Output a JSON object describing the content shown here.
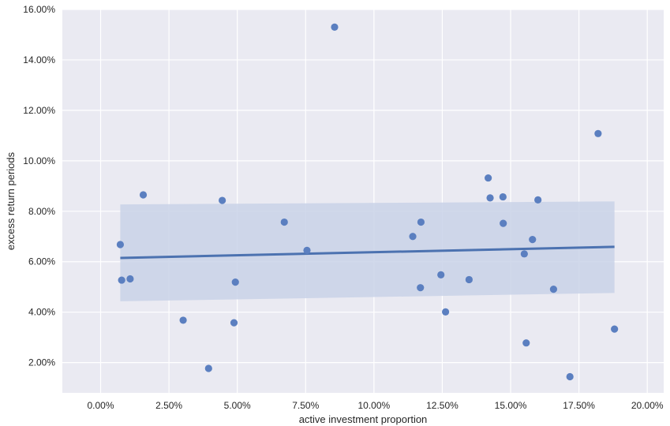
{
  "chart_data": {
    "type": "scatter",
    "title": "",
    "xlabel": "active investment proportion",
    "ylabel": "excess return periods",
    "xlim": [
      -0.014,
      0.206
    ],
    "ylim": [
      0.008,
      0.16
    ],
    "x_ticks": [
      {
        "value": 0.0,
        "label": "0.00%"
      },
      {
        "value": 0.025,
        "label": "2.50%"
      },
      {
        "value": 0.05,
        "label": "5.00%"
      },
      {
        "value": 0.075,
        "label": "7.50%"
      },
      {
        "value": 0.1,
        "label": "10.00%"
      },
      {
        "value": 0.125,
        "label": "12.50%"
      },
      {
        "value": 0.15,
        "label": "15.00%"
      },
      {
        "value": 0.175,
        "label": "17.50%"
      },
      {
        "value": 0.2,
        "label": "20.00%"
      }
    ],
    "y_ticks": [
      {
        "value": 0.02,
        "label": "2.00%"
      },
      {
        "value": 0.04,
        "label": "4.00%"
      },
      {
        "value": 0.06,
        "label": "6.00%"
      },
      {
        "value": 0.08,
        "label": "8.00%"
      },
      {
        "value": 0.1,
        "label": "10.00%"
      },
      {
        "value": 0.12,
        "label": "12.00%"
      },
      {
        "value": 0.14,
        "label": "14.00%"
      },
      {
        "value": 0.16,
        "label": "16.00%"
      }
    ],
    "grid": true,
    "points": [
      {
        "x": 0.0072,
        "y": 0.0668
      },
      {
        "x": 0.0077,
        "y": 0.0527
      },
      {
        "x": 0.0108,
        "y": 0.0532
      },
      {
        "x": 0.0156,
        "y": 0.0865
      },
      {
        "x": 0.0302,
        "y": 0.0368
      },
      {
        "x": 0.0395,
        "y": 0.0177
      },
      {
        "x": 0.0445,
        "y": 0.0843
      },
      {
        "x": 0.0488,
        "y": 0.0358
      },
      {
        "x": 0.0493,
        "y": 0.0519
      },
      {
        "x": 0.0672,
        "y": 0.0757
      },
      {
        "x": 0.0755,
        "y": 0.0645
      },
      {
        "x": 0.0856,
        "y": 0.153
      },
      {
        "x": 0.1142,
        "y": 0.07
      },
      {
        "x": 0.117,
        "y": 0.0497
      },
      {
        "x": 0.1172,
        "y": 0.0757
      },
      {
        "x": 0.1245,
        "y": 0.0548
      },
      {
        "x": 0.1262,
        "y": 0.0401
      },
      {
        "x": 0.1348,
        "y": 0.0529
      },
      {
        "x": 0.1418,
        "y": 0.0932
      },
      {
        "x": 0.1425,
        "y": 0.0853
      },
      {
        "x": 0.1472,
        "y": 0.0857
      },
      {
        "x": 0.1473,
        "y": 0.0752
      },
      {
        "x": 0.155,
        "y": 0.0631
      },
      {
        "x": 0.1557,
        "y": 0.0278
      },
      {
        "x": 0.158,
        "y": 0.0688
      },
      {
        "x": 0.16,
        "y": 0.0845
      },
      {
        "x": 0.1657,
        "y": 0.0491
      },
      {
        "x": 0.1717,
        "y": 0.0144
      },
      {
        "x": 0.182,
        "y": 0.1108
      },
      {
        "x": 0.188,
        "y": 0.0333
      }
    ],
    "regression": {
      "x": [
        0.0072,
        0.188
      ],
      "y": [
        0.0615,
        0.0659
      ],
      "ci_lower": [
        0.0443,
        0.0476
      ],
      "ci_upper": [
        0.0827,
        0.0839
      ]
    },
    "colors": {
      "background": "#eaeaf2",
      "grid": "#ffffff",
      "points": "#5b7fc0",
      "line": "#4c72b0",
      "band": "#c9d2e8"
    }
  }
}
